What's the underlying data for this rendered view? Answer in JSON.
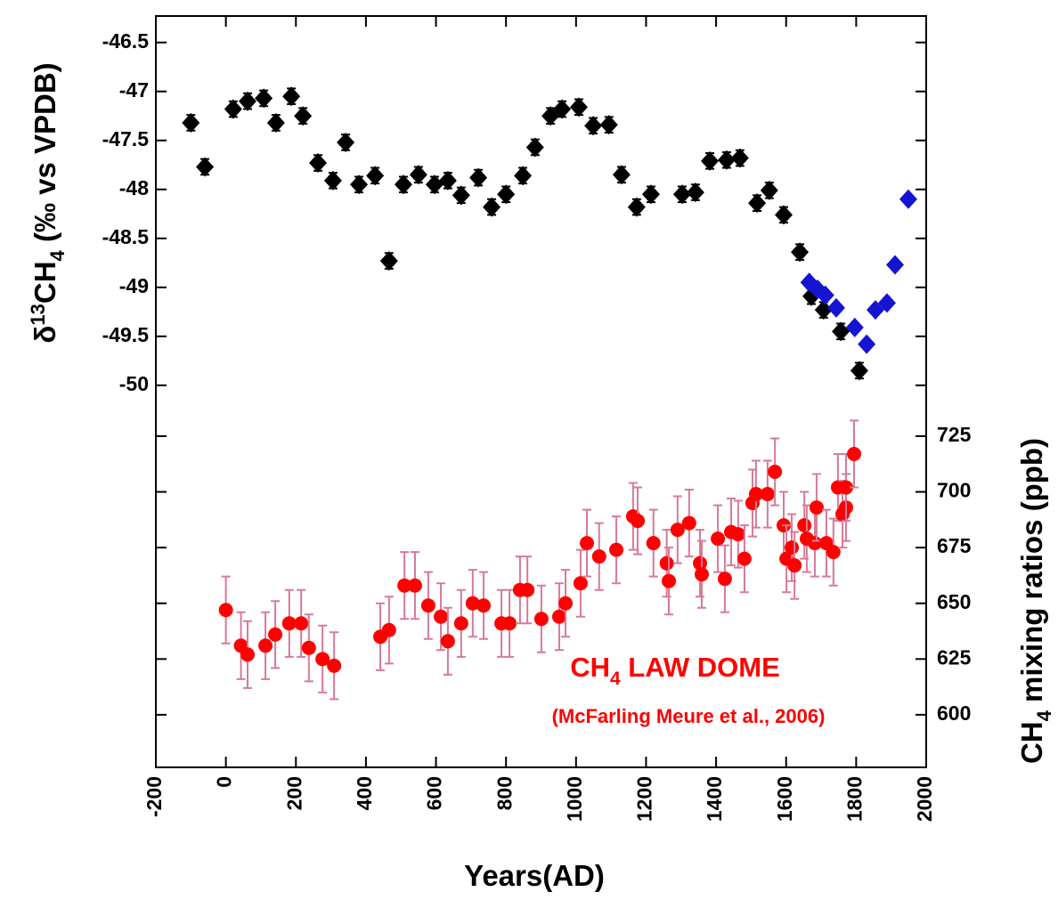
{
  "chart_data": {
    "type": "scatter",
    "xlabel": "Years(AD)",
    "ylabel": {
      "pre": "δ",
      "sup": "13",
      "main": "CH",
      "sub": "4",
      "post": " (‰ vs VPDB)"
    },
    "y2label": {
      "main": "CH",
      "sub": "4",
      "post": " mixing ratios (ppb)"
    },
    "annotation": {
      "main": "CH",
      "sub": "4",
      "post": " LAW DOME"
    },
    "annotation2": "(McFarling Meure et al., 2006)",
    "xlim": [
      -200,
      2000
    ],
    "xticks": [
      -200,
      0,
      200,
      400,
      600,
      800,
      1000,
      1200,
      1400,
      1600,
      1800,
      2000
    ],
    "ylim": [
      -53.9,
      -46.23
    ],
    "yticks": [
      -46.5,
      -47,
      -47.5,
      -48,
      -48.5,
      -49,
      -49.5,
      -50
    ],
    "y2lim": [
      576.4,
      913.5
    ],
    "y2ticks": [
      600,
      625,
      650,
      675,
      700,
      725
    ],
    "series": [
      {
        "color": "#000000",
        "marker": "diamond",
        "x": [
          -100,
          -60,
          21,
          62,
          108,
          143,
          187,
          220,
          263,
          306,
          342,
          380,
          426,
          466,
          507,
          550,
          596,
          634,
          672,
          721,
          759,
          800,
          848,
          883,
          927,
          960,
          1008,
          1049,
          1094,
          1130,
          1173,
          1214,
          1303,
          1341,
          1382,
          1430,
          1468,
          1517,
          1552,
          1593,
          1639,
          1672,
          1707,
          1756,
          1809
        ],
        "values": [
          -47.32,
          -47.77,
          -47.18,
          -47.1,
          -47.07,
          -47.32,
          -47.05,
          -47.25,
          -47.73,
          -47.91,
          -47.52,
          -47.95,
          -47.86,
          -48.73,
          -47.95,
          -47.85,
          -47.95,
          -47.91,
          -48.06,
          -47.88,
          -48.18,
          -48.05,
          -47.86,
          -47.57,
          -47.25,
          -47.18,
          -47.16,
          -47.35,
          -47.34,
          -47.85,
          -48.18,
          -48.05,
          -48.05,
          -48.03,
          -47.71,
          -47.7,
          -47.68,
          -48.14,
          -48.01,
          -48.26,
          -48.64,
          -49.09,
          -49.23,
          -49.45,
          -49.85
        ],
        "errors": [
          0.08,
          0.08,
          0.08,
          0.08,
          0.08,
          0.08,
          0.08,
          0.08,
          0.08,
          0.08,
          0.08,
          0.08,
          0.08,
          0.08,
          0.08,
          0.08,
          0.08,
          0.08,
          0.08,
          0.08,
          0.08,
          0.08,
          0.08,
          0.08,
          0.08,
          0.08,
          0.08,
          0.08,
          0.08,
          0.08,
          0.08,
          0.08,
          0.08,
          0.08,
          0.08,
          0.08,
          0.08,
          0.08,
          0.08,
          0.08,
          0.08,
          0.08,
          0.08,
          0.08,
          0.08
        ]
      },
      {
        "color": "#1414d2",
        "marker": "diamond",
        "x": [
          1666,
          1690,
          1712,
          1743,
          1796,
          1830,
          1855,
          1888,
          1911,
          1949
        ],
        "values": [
          -48.95,
          -49.02,
          -49.08,
          -49.21,
          -49.41,
          -49.58,
          -49.23,
          -49.16,
          -48.77,
          -48.1
        ]
      },
      {
        "color": "#ff0000",
        "error_color": "#d77a98",
        "marker": "circle",
        "axis": "y2",
        "x": [
          0,
          43,
          62,
          113,
          141,
          181,
          215,
          237,
          276,
          309,
          441,
          466,
          510,
          540,
          578,
          614,
          634,
          672,
          705,
          736,
          787,
          810,
          840,
          861,
          901,
          952,
          970,
          1013,
          1031,
          1066,
          1115,
          1163,
          1176,
          1221,
          1259,
          1265,
          1290,
          1323,
          1354,
          1359,
          1405,
          1425,
          1443,
          1463,
          1481,
          1504,
          1514,
          1547,
          1568,
          1593,
          1601,
          1616,
          1624,
          1652,
          1659,
          1682,
          1687,
          1715,
          1735,
          1748,
          1761,
          1771,
          1771,
          1794
        ],
        "values": [
          647,
          631,
          627,
          631,
          636,
          641,
          641,
          630,
          625,
          622,
          635,
          638,
          658,
          658,
          649,
          644,
          633,
          641,
          650,
          649,
          641,
          641,
          656,
          656,
          643,
          644,
          650,
          659,
          677,
          671,
          674,
          689,
          687,
          677,
          668,
          660,
          683,
          686,
          668,
          663,
          679,
          661,
          682,
          681,
          670,
          695,
          699,
          699,
          709,
          685,
          670,
          675,
          667,
          685,
          679,
          677,
          693,
          677,
          673,
          702,
          690,
          693,
          702,
          717
        ],
        "errors": [
          15,
          15,
          15,
          15,
          15,
          15,
          15,
          15,
          15,
          15,
          15,
          15,
          15,
          15,
          15,
          15,
          15,
          15,
          15,
          15,
          15,
          15,
          15,
          15,
          15,
          15,
          15,
          15,
          15,
          15,
          15,
          15,
          15,
          15,
          15,
          15,
          15,
          15,
          15,
          15,
          15,
          15,
          15,
          15,
          15,
          15,
          15,
          15,
          15,
          15,
          15,
          15,
          15,
          15,
          15,
          15,
          15,
          15,
          15,
          15,
          15,
          15,
          15,
          15
        ]
      }
    ]
  }
}
